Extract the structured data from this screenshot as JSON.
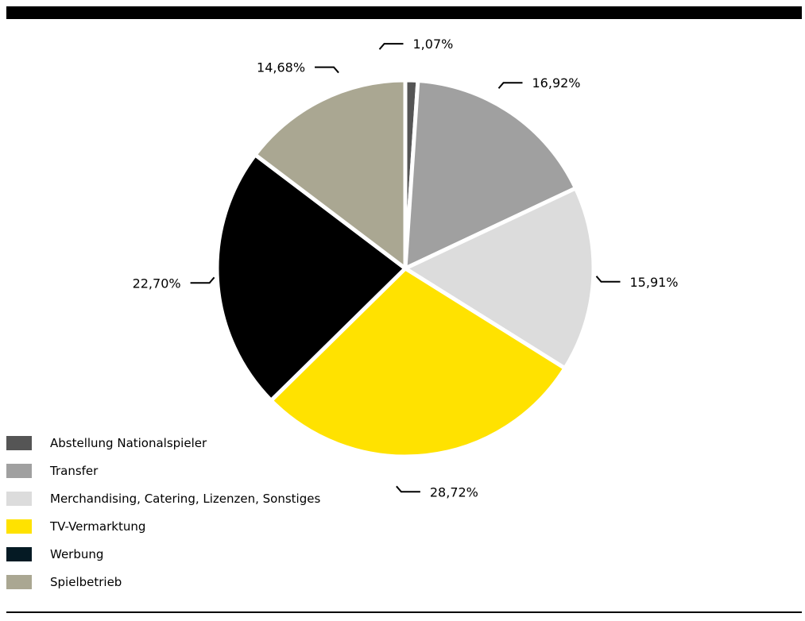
{
  "chart_data": {
    "type": "pie",
    "slices": [
      {
        "name": "Abstellung Nationalspieler",
        "value": 1.07,
        "label": "1,07%",
        "color": "#555555"
      },
      {
        "name": "Transfer",
        "value": 16.92,
        "label": "16,92%",
        "color": "#a0a0a0"
      },
      {
        "name": "Merchandising, Catering, Lizenzen, Sonstiges",
        "value": 15.91,
        "label": "15,91%",
        "color": "#dcdcdc"
      },
      {
        "name": "TV-Vermarktung",
        "value": 28.72,
        "label": "28,72%",
        "color": "#ffe200"
      },
      {
        "name": "Werbung",
        "value": 22.7,
        "label": "22,70%",
        "color": "#000000"
      },
      {
        "name": "Spielbetrieb",
        "value": 14.68,
        "label": "14,68%",
        "color": "#aaa792"
      }
    ],
    "legend": {
      "placement": "bottom-left",
      "entries": [
        {
          "label": "Abstellung Nationalspieler",
          "color": "#555555"
        },
        {
          "label": "Transfer",
          "color": "#a0a0a0"
        },
        {
          "label": "Merchandising, Catering, Lizenzen, Sonstiges",
          "color": "#dcdcdc"
        },
        {
          "label": "TV-Vermarktung",
          "color": "#ffe200"
        },
        {
          "label": "Werbung",
          "color": "#051a24"
        },
        {
          "label": "Spielbetrieb",
          "color": "#aaa792"
        }
      ]
    },
    "start": "12 o'clock",
    "direction": "clockwise"
  }
}
